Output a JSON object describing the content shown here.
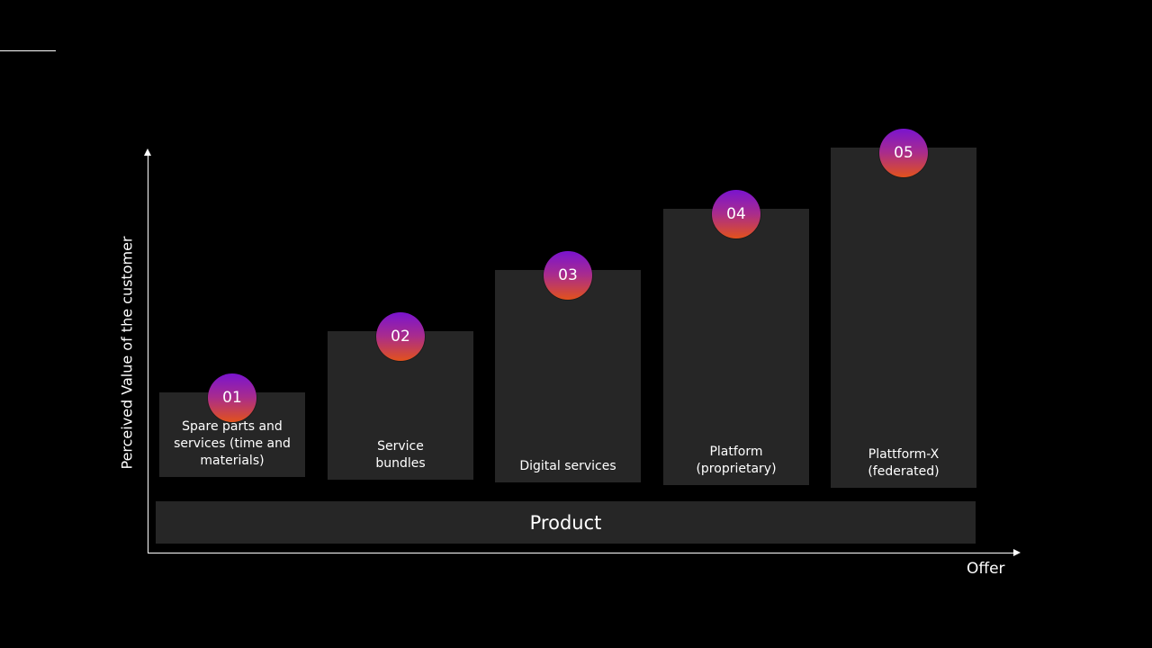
{
  "chart_data": {
    "type": "bar",
    "title": "",
    "xlabel": "Offer",
    "ylabel": "Perceived Value of the customer",
    "base_label": "Product",
    "categories": [
      "Spare parts and\nservices (time and\nmaterials)",
      "Service\nbundles",
      "Digital services",
      "Platform\n(proprietary)",
      "Plattform-X\n(federated)"
    ],
    "badges": [
      "01",
      "02",
      "03",
      "04",
      "05"
    ],
    "values": [
      1,
      2,
      3,
      4,
      5
    ],
    "ylim": [
      0,
      5
    ]
  },
  "colors": {
    "background": "#000000",
    "bar": "#262626",
    "text": "#ffffff",
    "badge_gradient_top": "#7a14cf",
    "badge_gradient_bottom": "#e2521c"
  }
}
